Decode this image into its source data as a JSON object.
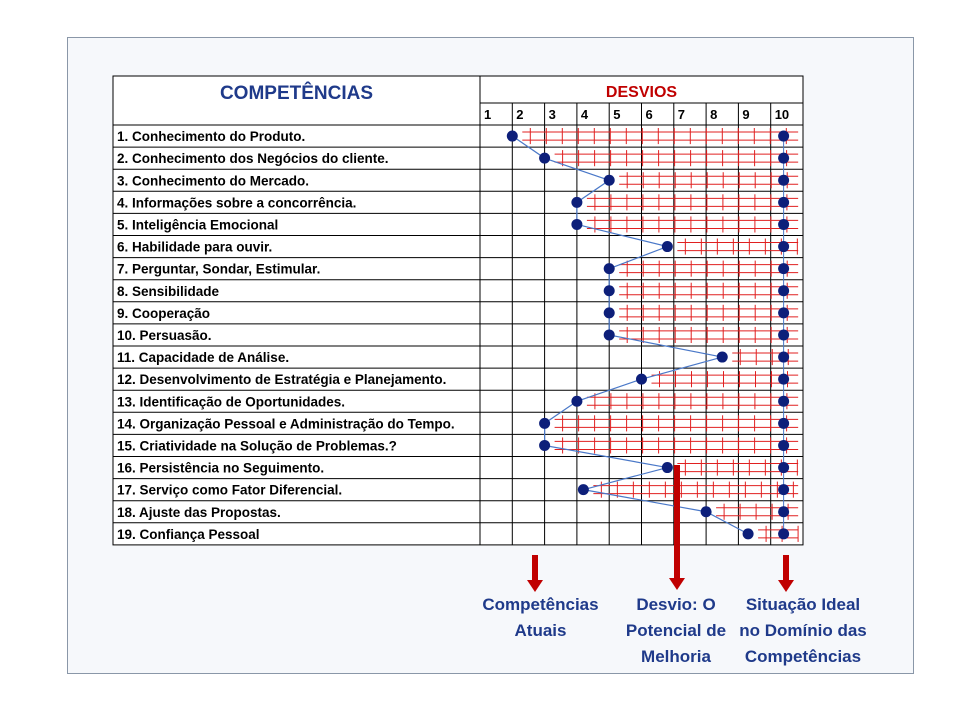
{
  "header": {
    "competencies_title": "COMPETÊNCIAS",
    "deviations_title": "DESVIOS",
    "scale": [
      "1",
      "2",
      "3",
      "4",
      "5",
      "6",
      "7",
      "8",
      "9",
      "10"
    ]
  },
  "competencies": [
    {
      "label": "1. Conhecimento do Produto.",
      "current": 1.5
    },
    {
      "label": "2. Conhecimento dos Negócios do cliente.",
      "current": 2.5
    },
    {
      "label": "3. Conhecimento do Mercado.",
      "current": 4.5
    },
    {
      "label": "4. Informações sobre a concorrência.",
      "current": 3.5
    },
    {
      "label": "5. Inteligência Emocional",
      "current": 3.5
    },
    {
      "label": "6. Habilidade para ouvir.",
      "current": 6.3
    },
    {
      "label": "7. Perguntar, Sondar, Estimular.",
      "current": 4.5
    },
    {
      "label": "8. Sensibilidade",
      "current": 4.5
    },
    {
      "label": "9. Cooperação",
      "current": 4.5
    },
    {
      "label": "10. Persuasão.",
      "current": 4.5
    },
    {
      "label": "11. Capacidade de Análise.",
      "current": 8.0
    },
    {
      "label": "12. Desenvolvimento de Estratégia e Planejamento.",
      "current": 5.5
    },
    {
      "label": "13. Identificação de Oportunidades.",
      "current": 3.5
    },
    {
      "label": "14. Organização Pessoal e Administração do Tempo.",
      "current": 2.5
    },
    {
      "label": "15. Criatividade na Solução de Problemas.?",
      "current": 2.5
    },
    {
      "label": "16. Persistência no Seguimento.",
      "current": 6.3
    },
    {
      "label": "17. Serviço como Fator Diferencial.",
      "current": 3.7
    },
    {
      "label": "18. Ajuste das Propostas.",
      "current": 7.5
    },
    {
      "label": "19. Confiança Pessoal",
      "current": 8.8
    }
  ],
  "ideal_value": 10,
  "annotations": {
    "current": "Competências\nAtuais",
    "deviation": "Desvio: O\nPotencial de\nMelhoria",
    "ideal": "Situação Ideal\nno Domínio das\nCompetências"
  },
  "colors": {
    "title_blue": "#1f3a8a",
    "desvios_red": "#c00000",
    "dot": "#0d1f7a",
    "deviation_lines": "#e02020",
    "arrow": "#c00000"
  }
}
